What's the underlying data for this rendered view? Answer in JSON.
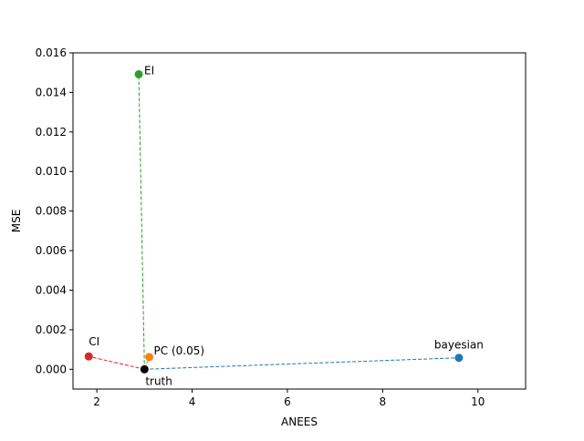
{
  "chart_data": {
    "type": "scatter",
    "xlabel": "ANEES",
    "ylabel": "MSE",
    "xlim": [
      1.5,
      11.0
    ],
    "ylim": [
      -0.001,
      0.016
    ],
    "xticks": [
      2,
      4,
      6,
      8,
      10
    ],
    "yticks": [
      0.0,
      0.002,
      0.004,
      0.006,
      0.008,
      0.01,
      0.012,
      0.014,
      0.016
    ],
    "ytick_labels": [
      "0.000",
      "0.002",
      "0.004",
      "0.006",
      "0.008",
      "0.010",
      "0.012",
      "0.014",
      "0.016"
    ],
    "grid": false,
    "truth": {
      "label": "truth",
      "x": 3.0,
      "y": 0.0,
      "color": "#000000"
    },
    "points": [
      {
        "label": "bayesian",
        "x": 9.6,
        "y": 0.00058,
        "color": "#1f77b4"
      },
      {
        "label": "PC (0.05)",
        "x": 3.1,
        "y": 0.00062,
        "color": "#ff7f0e"
      },
      {
        "label": "EI",
        "x": 2.88,
        "y": 0.01492,
        "color": "#2ca02c"
      },
      {
        "label": "CI",
        "x": 1.83,
        "y": 0.00065,
        "color": "#d62728"
      }
    ]
  }
}
